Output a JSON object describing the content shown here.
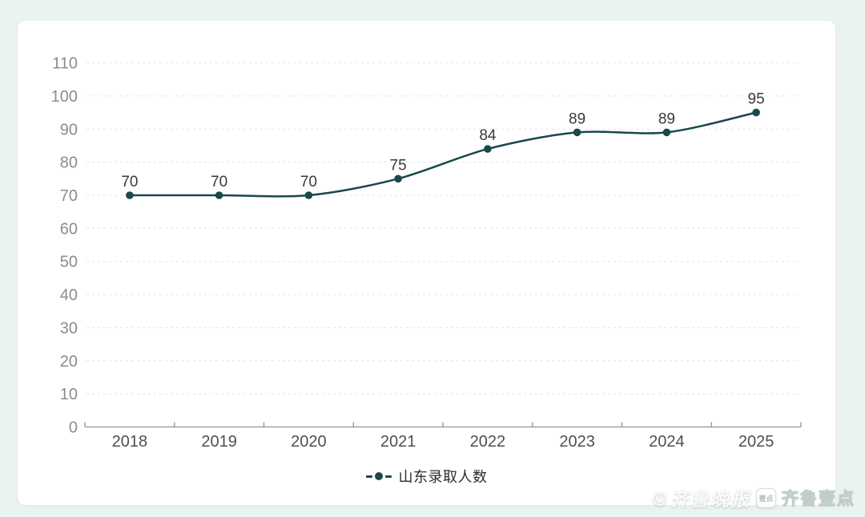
{
  "chart_data": {
    "type": "line",
    "title": "",
    "xlabel": "",
    "ylabel": "",
    "categories": [
      "2018",
      "2019",
      "2020",
      "2021",
      "2022",
      "2023",
      "2024",
      "2025"
    ],
    "series": [
      {
        "name": "山东录取人数",
        "values": [
          70,
          70,
          70,
          75,
          84,
          89,
          89,
          95
        ]
      }
    ],
    "yticks": [
      0,
      10,
      20,
      30,
      40,
      50,
      60,
      70,
      80,
      90,
      100,
      110
    ],
    "ylim": [
      0,
      110
    ],
    "grid": "horizontal-dashed",
    "legend_position": "bottom-center",
    "show_data_labels": true
  },
  "legend": {
    "label": "山东录取人数"
  },
  "watermark": {
    "copyright_script": "©齐鲁晚报",
    "logo_box_label": "壹点",
    "brand": "齐鲁壹点"
  },
  "colors": {
    "page_background": "#ebf3f1",
    "card_background": "#ffffff",
    "accent": "#1a484c",
    "gridline": "#e4e4e4",
    "axis_line": "#909596",
    "y_tick_label": "#8c8c8c",
    "x_tick_label": "#4f4f4f",
    "data_label": "#3a3a3a",
    "legend_text": "#2c2c2c"
  }
}
